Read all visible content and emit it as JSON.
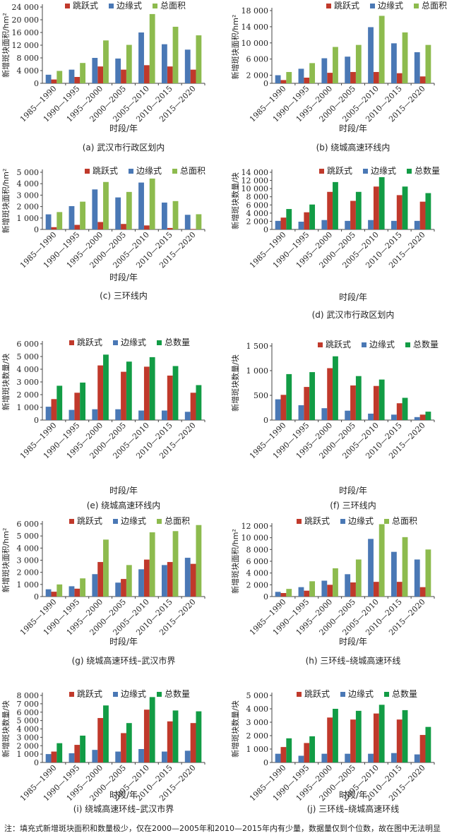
{
  "colors": {
    "jump": "#c0392b",
    "edge": "#4a78b5",
    "area_total": "#8dbb4e",
    "count_total": "#129c45"
  },
  "note": "注：填充式新增斑块面积和数量极少，仅在2000—2005年和2010—2015年内有少量，数据量仅到个位数，故在图中无法明显",
  "chart_data": [
    {
      "type": "bar",
      "caption": "(a) 武汉市行政区划内",
      "xlabel": "时段/年",
      "ylabel": "新增斑块面积/hm²",
      "ylim": [
        0,
        24000
      ],
      "yticks": [
        "0",
        "4 000",
        "8 000",
        "12 000",
        "16 000",
        "20 000",
        "24 000"
      ],
      "categories": [
        "1985—1990",
        "1990—1995",
        "1995—2000",
        "2000—2005",
        "2005—2010",
        "2010—2015",
        "2015—2020"
      ],
      "series": [
        {
          "name": "跳跃式",
          "color": "#c0392b",
          "values": [
            1200,
            2000,
            5300,
            4300,
            5700,
            5300,
            4300
          ]
        },
        {
          "name": "边缘式",
          "color": "#4a78b5",
          "values": [
            2700,
            4300,
            8000,
            7800,
            16000,
            12300,
            10600
          ]
        },
        {
          "name": "总面积",
          "color": "#8dbb4e",
          "values": [
            3900,
            6400,
            13500,
            12100,
            21800,
            17800,
            15100
          ]
        }
      ]
    },
    {
      "type": "bar",
      "caption": "(b) 绕城高速环线内",
      "xlabel": "时段/年",
      "ylabel": "新增斑块面积/hm²",
      "ylim": [
        0,
        18000
      ],
      "yticks": [
        "0",
        "2 000",
        "6 000",
        "10 000",
        "14 000",
        "18 000"
      ],
      "ytickvals": [
        0,
        2000,
        6000,
        10000,
        14000,
        18000
      ],
      "categories": [
        "1985—1990",
        "1990—1995",
        "1995—2000",
        "2000—2005",
        "2005—2010",
        "2010—2015",
        "2015—2020"
      ],
      "series": [
        {
          "name": "跳跃式",
          "color": "#c0392b",
          "values": [
            800,
            1400,
            2600,
            2800,
            2800,
            2500,
            1700
          ]
        },
        {
          "name": "边缘式",
          "color": "#4a78b5",
          "values": [
            2000,
            3600,
            6200,
            6600,
            13900,
            9900,
            7700
          ]
        },
        {
          "name": "总面积",
          "color": "#8dbb4e",
          "values": [
            2800,
            5000,
            9000,
            9500,
            16700,
            12600,
            9500
          ]
        }
      ]
    },
    {
      "type": "bar",
      "caption": "(c) 三环线内",
      "xlabel": "时段/年",
      "ylabel": "新增斑块面积/hm²",
      "ylim": [
        0,
        5000
      ],
      "yticks": [
        "0",
        "1 000",
        "2 000",
        "3 000",
        "4 000",
        "5 000"
      ],
      "categories": [
        "1985—1990",
        "1990—1995",
        "1995—2000",
        "2000—2005",
        "2005—2010",
        "2010—2015",
        "2015—2020"
      ],
      "series": [
        {
          "name": "跳跃式",
          "color": "#c0392b",
          "values": [
            200,
            400,
            650,
            480,
            350,
            130,
            40
          ]
        },
        {
          "name": "边缘式",
          "color": "#4a78b5",
          "values": [
            1320,
            2040,
            3500,
            2800,
            4100,
            2350,
            1280
          ]
        },
        {
          "name": "总面积",
          "color": "#8dbb4e",
          "values": [
            1520,
            2430,
            4150,
            3280,
            4450,
            2480,
            1330
          ]
        }
      ]
    },
    {
      "type": "bar",
      "caption": "(d) 武汉市行政区划内",
      "xlabel": "时段/年",
      "ylabel": "新增斑块数量/块",
      "ylim": [
        0,
        14000
      ],
      "yticks": [
        "0",
        "2 000",
        "4 000",
        "6 000",
        "8 000",
        "10 000",
        "12 000",
        "14 000"
      ],
      "categories": [
        "1985—1990",
        "1990—1995",
        "1995—2000",
        "2000—2005",
        "2005—2010",
        "2010—2015",
        "2015—2020"
      ],
      "series": [
        {
          "name": "跳跃式",
          "color": "#c0392b",
          "values": [
            2900,
            4200,
            9200,
            7000,
            10500,
            8400,
            6800
          ]
        },
        {
          "name": "边缘式",
          "color": "#4a78b5",
          "values": [
            2100,
            1900,
            2300,
            2100,
            2300,
            2100,
            2100
          ]
        },
        {
          "name": "总数量",
          "color": "#129c45",
          "values": [
            5000,
            6100,
            11600,
            9200,
            12800,
            10500,
            8900
          ]
        }
      ]
    },
    {
      "type": "bar",
      "caption": "(e) 绕城高速环线内",
      "xlabel": "时段/年",
      "ylabel": "新增斑块数量/块",
      "ylim": [
        0,
        6000
      ],
      "yticks": [
        "0",
        "1 000",
        "2 000",
        "3 000",
        "4 000",
        "5 000",
        "6 000"
      ],
      "categories": [
        "1985—1990",
        "1990—1995",
        "1995—2000",
        "2000—2005",
        "2005—2010",
        "2010—2015",
        "2015—2020"
      ],
      "series": [
        {
          "name": "跳跃式",
          "color": "#c0392b",
          "values": [
            1650,
            2150,
            4300,
            3800,
            4200,
            3500,
            2150
          ]
        },
        {
          "name": "边缘式",
          "color": "#4a78b5",
          "values": [
            1050,
            800,
            850,
            850,
            750,
            750,
            650
          ]
        },
        {
          "name": "总数量",
          "color": "#129c45",
          "values": [
            2700,
            2950,
            5150,
            4600,
            4950,
            4250,
            2750
          ]
        }
      ]
    },
    {
      "type": "bar",
      "caption": "(f) 三环线内",
      "xlabel": "时段/年",
      "ylabel": "新增斑块数量/块",
      "ylim": [
        0,
        1500
      ],
      "yticks": [
        "0",
        "500",
        "1 000",
        "1 500"
      ],
      "categories": [
        "1985—1990",
        "1990—1995",
        "1995—2000",
        "2000—2005",
        "2005—2010",
        "2010—2015",
        "2015—2020"
      ],
      "series": [
        {
          "name": "跳跃式",
          "color": "#c0392b",
          "values": [
            510,
            670,
            1050,
            700,
            690,
            340,
            110
          ]
        },
        {
          "name": "边缘式",
          "color": "#4a78b5",
          "values": [
            420,
            300,
            240,
            190,
            130,
            110,
            60
          ]
        },
        {
          "name": "总数量",
          "color": "#129c45",
          "values": [
            930,
            970,
            1290,
            890,
            820,
            450,
            170
          ]
        }
      ]
    },
    {
      "type": "bar",
      "caption": "(g) 绕城高速环线–武汉市界",
      "xlabel": "时段/年",
      "ylabel": "新增斑块面积/hm²",
      "ylim": [
        0,
        6000
      ],
      "yticks": [
        "0",
        "1 000",
        "2 000",
        "3 000",
        "4 000",
        "5 000",
        "6 000"
      ],
      "categories": [
        "1985—1990",
        "1990—1995",
        "1995—2000",
        "2000—2005",
        "2005—2010",
        "2010—2015",
        "2015—2020"
      ],
      "series": [
        {
          "name": "跳跃式",
          "color": "#c0392b",
          "values": [
            400,
            650,
            2850,
            1450,
            3050,
            2850,
            2700
          ]
        },
        {
          "name": "边缘式",
          "color": "#4a78b5",
          "values": [
            600,
            850,
            1850,
            1150,
            2250,
            2600,
            3200
          ]
        },
        {
          "name": "总面积",
          "color": "#8dbb4e",
          "values": [
            1000,
            1500,
            4700,
            2600,
            5300,
            5400,
            5900
          ]
        }
      ]
    },
    {
      "type": "bar",
      "caption": "(h) 三环线–绕城高速环线",
      "xlabel": "时段/年",
      "ylabel": "新增斑块面积/hm²",
      "ylim": [
        0,
        12000
      ],
      "yticks": [
        "0",
        "2 000",
        "4 000",
        "6 000",
        "8 000",
        "10 000",
        "12 000"
      ],
      "categories": [
        "1985—1990",
        "1990—1995",
        "1995—2000",
        "2000—2005",
        "2005—2010",
        "2010—2015",
        "2015—2020"
      ],
      "series": [
        {
          "name": "跳跃式",
          "color": "#c0392b",
          "values": [
            600,
            1000,
            2000,
            2400,
            2500,
            2500,
            1600
          ]
        },
        {
          "name": "边缘式",
          "color": "#4a78b5",
          "values": [
            800,
            1600,
            2700,
            3800,
            9800,
            7600,
            6300
          ]
        },
        {
          "name": "总面积",
          "color": "#8dbb4e",
          "values": [
            1300,
            2600,
            4800,
            6300,
            12300,
            10100,
            8000
          ]
        }
      ]
    },
    {
      "type": "bar",
      "caption": "(i) 绕城高速环线–武汉市界",
      "xlabel": "时段/年",
      "ylabel": "新增斑块数量/块",
      "ylim": [
        0,
        8000
      ],
      "yticks": [
        "0",
        "1 000",
        "2 000",
        "3 000",
        "4 000",
        "5 000",
        "6 000",
        "7 000",
        "8 000"
      ],
      "categories": [
        "1985—1990",
        "1990—1995",
        "1995—2000",
        "2000—2005",
        "2005—2010",
        "2010—2015",
        "2015—2020"
      ],
      "series": [
        {
          "name": "跳跃式",
          "color": "#c0392b",
          "values": [
            1300,
            2100,
            5300,
            3500,
            6300,
            4900,
            4700
          ]
        },
        {
          "name": "边缘式",
          "color": "#4a78b5",
          "values": [
            1000,
            1100,
            1500,
            1300,
            1600,
            1300,
            1400
          ]
        },
        {
          "name": "总数量",
          "color": "#129c45",
          "values": [
            2300,
            3200,
            6800,
            4700,
            7800,
            6200,
            6100
          ]
        }
      ]
    },
    {
      "type": "bar",
      "caption": "(j) 三环线–绕城高速环线",
      "xlabel": "时段/年",
      "ylabel": "新增斑块数量/块",
      "ylim": [
        0,
        5000
      ],
      "yticks": [
        "0",
        "1 000",
        "2 000",
        "3 000",
        "4 000",
        "5 000"
      ],
      "categories": [
        "1985—1990",
        "1990—1995",
        "1995—2000",
        "2000—2005",
        "2005—2010",
        "2010—2015",
        "2015—2020"
      ],
      "series": [
        {
          "name": "跳跃式",
          "color": "#c0392b",
          "values": [
            1150,
            1450,
            3350,
            3200,
            3650,
            3200,
            2050
          ]
        },
        {
          "name": "边缘式",
          "color": "#4a78b5",
          "values": [
            650,
            500,
            650,
            650,
            650,
            700,
            600
          ]
        },
        {
          "name": "总数量",
          "color": "#129c45",
          "values": [
            1800,
            1950,
            4000,
            3850,
            4300,
            3900,
            2650
          ]
        }
      ]
    }
  ]
}
